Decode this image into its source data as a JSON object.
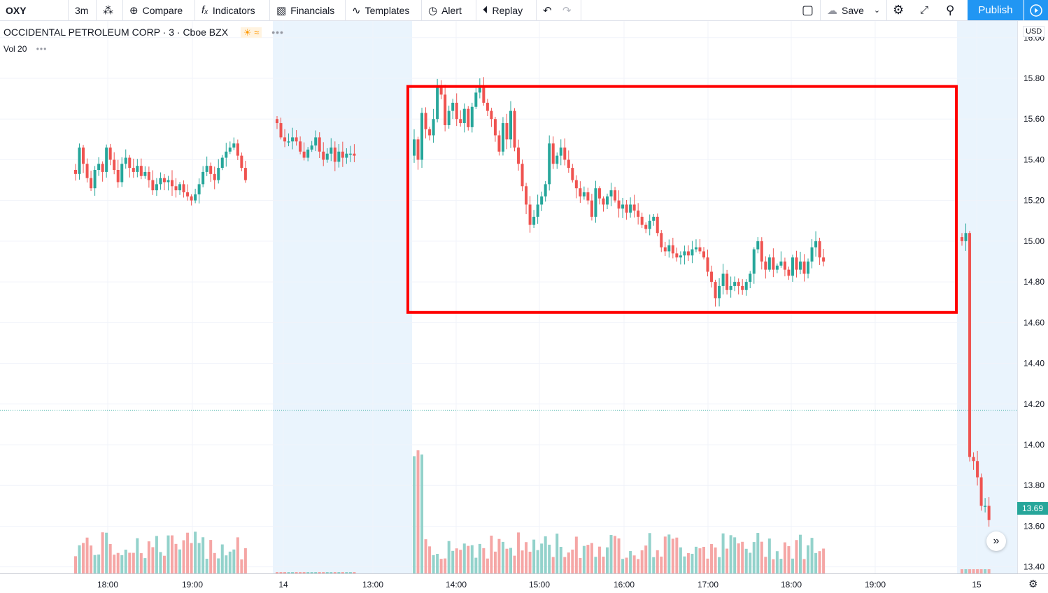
{
  "toolbar": {
    "symbol": "OXY",
    "interval": "3m",
    "compare": "Compare",
    "indicators": "Indicators",
    "financials": "Financials",
    "templates": "Templates",
    "alert": "Alert",
    "replay": "Replay",
    "save": "Save",
    "publish": "Publish"
  },
  "legend": {
    "title": "OCCIDENTAL PETROLEUM CORP · 3 · Cboe BZX",
    "volume": "Vol 20"
  },
  "currency": "USD",
  "last_price": "13.69",
  "colors": {
    "up": "#26a69a",
    "down": "#ef5350",
    "up_volume": "#93d2cb",
    "down_volume": "#f5a6a5",
    "highlight_box": "#ff0000",
    "session_shade": "#eaf4fd",
    "accent": "#2196f3"
  },
  "chart_data": {
    "type": "candlestick",
    "y_ticks": [
      "16.00",
      "15.80",
      "15.60",
      "15.40",
      "15.20",
      "15.00",
      "14.80",
      "14.60",
      "14.40",
      "14.20",
      "14.00",
      "13.80",
      "13.60",
      "13.40"
    ],
    "ylim": [
      13.35,
      16.02
    ],
    "x_ticks": [
      "18:00",
      "19:00",
      "14",
      "13:00",
      "14:00",
      "15:00",
      "16:00",
      "17:00",
      "18:00",
      "19:00",
      "15"
    ],
    "price_line": 14.17,
    "highlight_box": {
      "price_top": 15.76,
      "price_bottom": 14.65,
      "note": "region highlighted with red rectangle"
    },
    "series": [
      {
        "name": "day1_evening",
        "closes": [
          15.33,
          15.46,
          15.38,
          15.31,
          15.26,
          15.35,
          15.38,
          15.34,
          15.46,
          15.4,
          15.35,
          15.29,
          15.38,
          15.41,
          15.36,
          15.34,
          15.37,
          15.32,
          15.34,
          15.3,
          15.25,
          15.28,
          15.31,
          15.29,
          15.3,
          15.27,
          15.25,
          15.28,
          15.24,
          15.22,
          15.2,
          15.23,
          15.28,
          15.34,
          15.37,
          15.33,
          15.3,
          15.36,
          15.41,
          15.44,
          15.46,
          15.48,
          15.42,
          15.36,
          15.3
        ]
      },
      {
        "name": "day2_premarket",
        "closes": [
          15.58,
          15.51,
          15.49,
          15.49,
          15.51,
          15.49,
          15.44,
          15.41,
          15.45,
          15.47,
          15.51,
          15.44,
          15.4,
          15.43,
          15.46,
          15.39,
          15.44,
          15.41,
          15.43,
          15.43,
          15.42
        ]
      },
      {
        "name": "day2_session",
        "closes": [
          15.5,
          15.4,
          15.63,
          15.55,
          15.52,
          15.6,
          15.76,
          15.72,
          15.57,
          15.64,
          15.68,
          15.6,
          15.58,
          15.65,
          15.56,
          15.66,
          15.73,
          15.76,
          15.68,
          15.64,
          15.6,
          15.52,
          15.44,
          15.58,
          15.5,
          15.64,
          15.46,
          15.38,
          15.27,
          15.18,
          15.08,
          15.12,
          15.18,
          15.22,
          15.28,
          15.48,
          15.38,
          15.42,
          15.46,
          15.4,
          15.36,
          15.3,
          15.26,
          15.22,
          15.24,
          15.2,
          15.12,
          15.26,
          15.21,
          15.18,
          15.22,
          15.25,
          15.2,
          15.16,
          15.18,
          15.14,
          15.18,
          15.15,
          15.12,
          15.08,
          15.06,
          15.1,
          15.12,
          15.04,
          14.97,
          14.95,
          14.98,
          14.94,
          14.92,
          14.93,
          14.95,
          14.93,
          14.96,
          14.97,
          14.95,
          14.92,
          14.85,
          14.8,
          14.72,
          14.78,
          14.84,
          14.76,
          14.78,
          14.8,
          14.78,
          14.76,
          14.8,
          14.84,
          14.96,
          15.0,
          14.9,
          14.86,
          14.92,
          14.86,
          14.88,
          14.9,
          14.86,
          14.83,
          14.92,
          14.86,
          14.9,
          14.84,
          14.9,
          14.97,
          15.0,
          14.92,
          14.9
        ]
      },
      {
        "name": "day3_premarket",
        "closes": [
          15.0,
          15.04,
          13.94,
          13.92,
          13.84,
          13.7,
          13.7,
          13.63
        ]
      }
    ]
  }
}
